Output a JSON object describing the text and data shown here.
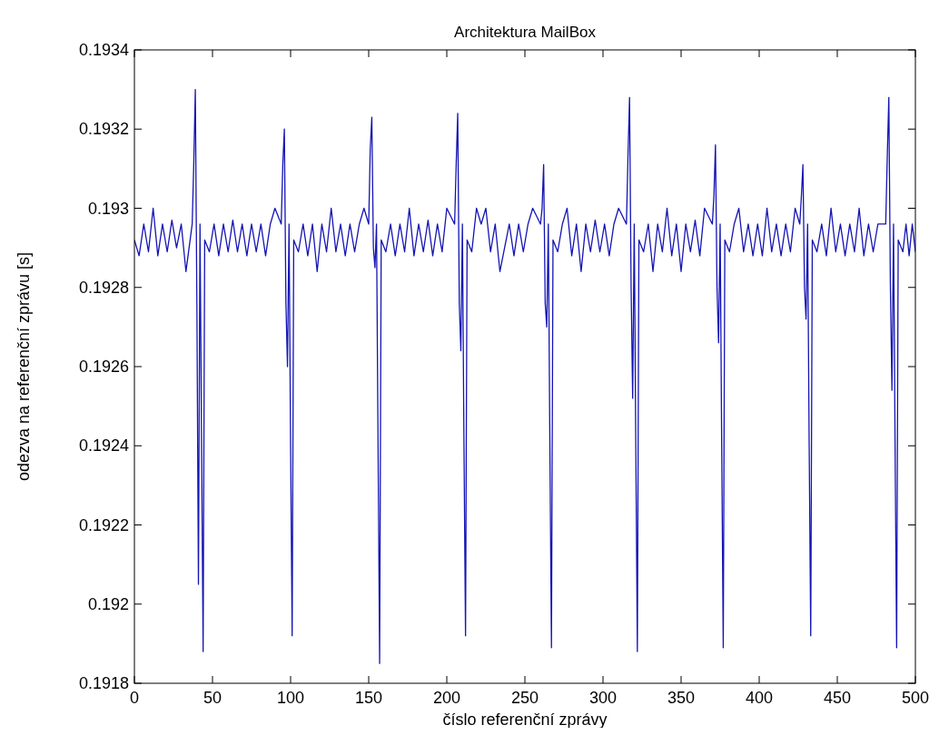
{
  "chart_data": {
    "type": "line",
    "title": "Architektura MailBox",
    "xlabel": "číslo referenční zprávy",
    "ylabel": "odezva na referenční zprávu [s]",
    "xlim": [
      0,
      500
    ],
    "xticks": [
      0,
      50,
      100,
      150,
      200,
      250,
      300,
      350,
      400,
      450,
      500
    ],
    "ylim": [
      0.1918,
      0.1934
    ],
    "yticks": [
      0.1918,
      0.192,
      0.1922,
      0.1924,
      0.1926,
      0.1928,
      0.193,
      0.1932,
      0.1934
    ],
    "grid": false,
    "marker": "none",
    "line_style": "solid",
    "series": [
      {
        "color": "#1414b4",
        "x": [
          0,
          3,
          6,
          9,
          12,
          15,
          18,
          21,
          24,
          27,
          30,
          33,
          37,
          38,
          39,
          40,
          41,
          42,
          43,
          44,
          45,
          48,
          51,
          54,
          57,
          60,
          63,
          66,
          69,
          72,
          75,
          78,
          81,
          84,
          87,
          90,
          94,
          95,
          96,
          97,
          98,
          99,
          100,
          101,
          102,
          105,
          108,
          111,
          114,
          117,
          120,
          123,
          126,
          129,
          132,
          135,
          138,
          141,
          144,
          147,
          150,
          151,
          152,
          153,
          154,
          155,
          156,
          157,
          158,
          161,
          164,
          167,
          170,
          173,
          176,
          179,
          182,
          185,
          188,
          191,
          194,
          197,
          200,
          205,
          206,
          207,
          208,
          209,
          210,
          211,
          212,
          213,
          216,
          219,
          222,
          225,
          228,
          231,
          234,
          237,
          240,
          243,
          246,
          249,
          252,
          255,
          260,
          261,
          262,
          263,
          264,
          265,
          266,
          267,
          268,
          271,
          274,
          277,
          280,
          283,
          286,
          289,
          292,
          295,
          298,
          301,
          304,
          307,
          310,
          315,
          316,
          317,
          318,
          319,
          320,
          321,
          322,
          323,
          326,
          329,
          332,
          335,
          338,
          341,
          344,
          347,
          350,
          353,
          356,
          359,
          362,
          365,
          370,
          371,
          372,
          373,
          374,
          375,
          376,
          377,
          378,
          381,
          384,
          387,
          390,
          393,
          396,
          399,
          402,
          405,
          408,
          411,
          414,
          417,
          420,
          423,
          426,
          427,
          428,
          429,
          430,
          431,
          432,
          433,
          434,
          437,
          440,
          443,
          446,
          449,
          452,
          455,
          458,
          461,
          464,
          467,
          470,
          473,
          476,
          481,
          482,
          483,
          484,
          485,
          486,
          487,
          488,
          489,
          492,
          494,
          496,
          498,
          500
        ],
        "values": [
          0.19292,
          0.19288,
          0.19296,
          0.19289,
          0.193,
          0.19288,
          0.19296,
          0.19289,
          0.19297,
          0.1929,
          0.19296,
          0.19284,
          0.19296,
          0.19311,
          0.1933,
          0.19276,
          0.19205,
          0.19296,
          0.1924,
          0.19188,
          0.19292,
          0.19289,
          0.19296,
          0.19288,
          0.19296,
          0.19289,
          0.19297,
          0.19289,
          0.19296,
          0.19288,
          0.19296,
          0.19289,
          0.19296,
          0.19288,
          0.19296,
          0.193,
          0.19296,
          0.19311,
          0.1932,
          0.19276,
          0.1926,
          0.19296,
          0.1924,
          0.19192,
          0.19292,
          0.19289,
          0.19296,
          0.19288,
          0.19296,
          0.19284,
          0.19296,
          0.19289,
          0.193,
          0.19289,
          0.19296,
          0.19288,
          0.19296,
          0.19289,
          0.19296,
          0.193,
          0.19296,
          0.19315,
          0.19323,
          0.1929,
          0.19285,
          0.19296,
          0.1924,
          0.19185,
          0.19292,
          0.19289,
          0.19296,
          0.19288,
          0.19296,
          0.19289,
          0.193,
          0.19288,
          0.19296,
          0.19289,
          0.19297,
          0.19288,
          0.19296,
          0.19289,
          0.193,
          0.19296,
          0.19311,
          0.19324,
          0.19276,
          0.19264,
          0.19296,
          0.1924,
          0.19192,
          0.19292,
          0.19289,
          0.193,
          0.19296,
          0.193,
          0.19289,
          0.19296,
          0.19284,
          0.1929,
          0.19296,
          0.19288,
          0.19296,
          0.19289,
          0.19296,
          0.193,
          0.19296,
          0.193,
          0.19311,
          0.19276,
          0.1927,
          0.19296,
          0.1924,
          0.19189,
          0.19292,
          0.19289,
          0.19296,
          0.193,
          0.19288,
          0.19296,
          0.19284,
          0.19296,
          0.19289,
          0.19297,
          0.19289,
          0.19296,
          0.19288,
          0.19296,
          0.193,
          0.19296,
          0.19313,
          0.19328,
          0.1928,
          0.19252,
          0.19296,
          0.1924,
          0.19188,
          0.19292,
          0.19289,
          0.19296,
          0.19284,
          0.19296,
          0.19289,
          0.193,
          0.19288,
          0.19296,
          0.19284,
          0.19296,
          0.19289,
          0.19297,
          0.19288,
          0.193,
          0.19296,
          0.19303,
          0.19316,
          0.1928,
          0.19266,
          0.19296,
          0.1924,
          0.19189,
          0.19292,
          0.19289,
          0.19296,
          0.193,
          0.19289,
          0.19296,
          0.19288,
          0.19296,
          0.19288,
          0.193,
          0.19289,
          0.19296,
          0.19288,
          0.19296,
          0.19289,
          0.193,
          0.19296,
          0.19303,
          0.19311,
          0.1928,
          0.19272,
          0.19296,
          0.1924,
          0.19192,
          0.19292,
          0.19289,
          0.19296,
          0.19288,
          0.193,
          0.19289,
          0.19296,
          0.19288,
          0.19296,
          0.19289,
          0.193,
          0.19288,
          0.19296,
          0.19289,
          0.19296,
          0.19296,
          0.19313,
          0.19328,
          0.1928,
          0.19254,
          0.19296,
          0.1924,
          0.19189,
          0.19292,
          0.19289,
          0.19296,
          0.19288,
          0.19296,
          0.19289
        ]
      }
    ]
  }
}
